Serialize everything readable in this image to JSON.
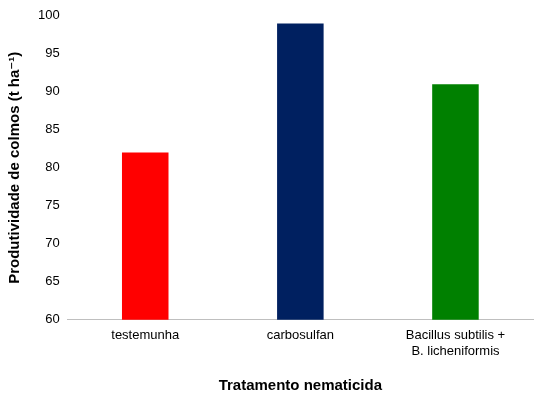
{
  "chart_data": {
    "type": "bar",
    "categories": [
      "testemunha",
      "carbosulfan",
      "Bacillus subtilis + B. licheniformis"
    ],
    "values": [
      82,
      99,
      91
    ],
    "colors": [
      "#ff0000",
      "#002060",
      "#008000"
    ],
    "x_label": "Tratamento nematicida",
    "y_label": "Produtividade de colmos (t ha⁻¹)",
    "ylim": [
      60,
      100
    ],
    "yticks": [
      60,
      65,
      70,
      75,
      80,
      85,
      90,
      95,
      100
    ],
    "grid": false
  }
}
